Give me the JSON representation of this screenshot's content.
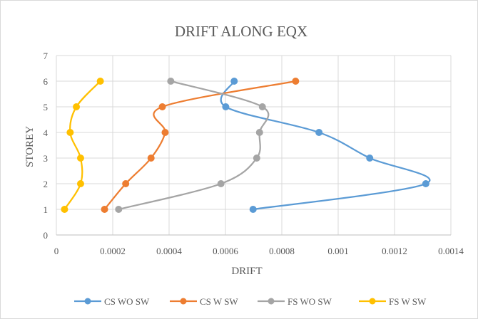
{
  "chart_data": {
    "type": "line",
    "title": "DRIFT ALONG  EQX",
    "xlabel": "DRIFT",
    "ylabel": "STOREY",
    "xlim": [
      0,
      0.0014
    ],
    "ylim": [
      0,
      7
    ],
    "x_ticks": [
      "0",
      "0.0002",
      "0.0004",
      "0.0006",
      "0.0008",
      "0.001",
      "0.0012",
      "0.0014"
    ],
    "y_ticks": [
      "0",
      "1",
      "2",
      "3",
      "4",
      "5",
      "6",
      "7"
    ],
    "grid": true,
    "legend_position": "bottom",
    "series": [
      {
        "name": "CS WO SW",
        "color": "#5b9bd5",
        "points": [
          [
            0.000698,
            1
          ],
          [
            0.001311,
            2
          ],
          [
            0.001112,
            3
          ],
          [
            0.000932,
            4
          ],
          [
            0.000601,
            5
          ],
          [
            0.000631,
            6
          ]
        ]
      },
      {
        "name": "CS W SW",
        "color": "#ed7d31",
        "points": [
          [
            0.000171,
            1
          ],
          [
            0.000246,
            2
          ],
          [
            0.000336,
            3
          ],
          [
            0.000386,
            4
          ],
          [
            0.000376,
            5
          ],
          [
            0.000849,
            6
          ]
        ]
      },
      {
        "name": "FS WO SW",
        "color": "#a5a5a5",
        "points": [
          [
            0.000221,
            1
          ],
          [
            0.000584,
            2
          ],
          [
            0.000711,
            3
          ],
          [
            0.000721,
            4
          ],
          [
            0.000731,
            5
          ],
          [
            0.000406,
            6
          ]
        ]
      },
      {
        "name": "FS W SW",
        "color": "#ffc000",
        "points": [
          [
            2.9e-05,
            1
          ],
          [
            8.6e-05,
            2
          ],
          [
            8.6e-05,
            3
          ],
          [
            4.9e-05,
            4
          ],
          [
            7.1e-05,
            5
          ],
          [
            0.000156,
            6
          ]
        ]
      }
    ]
  }
}
